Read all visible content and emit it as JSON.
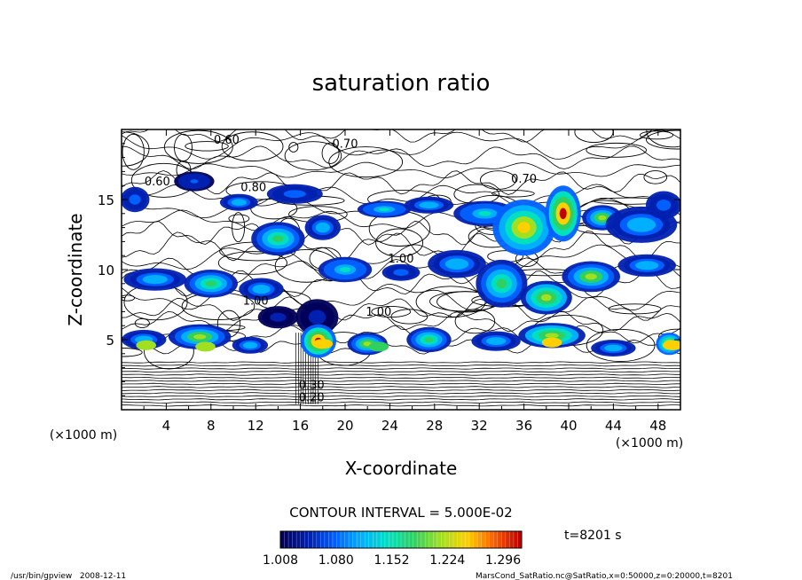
{
  "chart_data": {
    "type": "heatmap",
    "title": "saturation ratio",
    "xlabel": "X-coordinate",
    "ylabel": "Z-coordinate",
    "x_unit": "(×1000 m)",
    "y_unit": "(×1000 m)",
    "xlim": [
      0,
      50
    ],
    "ylim": [
      0,
      20
    ],
    "x_ticks": [
      4,
      8,
      12,
      16,
      20,
      24,
      28,
      32,
      36,
      40,
      44,
      48
    ],
    "y_ticks": [
      5,
      10,
      15
    ],
    "contour_interval_label": "CONTOUR INTERVAL = 5.000E-02",
    "contour_labels": [
      "0.60",
      "0.70",
      "0.80",
      "0.60",
      "0.70",
      "1.00",
      "1.00",
      "1.00",
      "0.20",
      "0.30"
    ],
    "colorbar": {
      "min": 1.008,
      "max": 1.32,
      "ticks": [
        "1.008",
        "1.080",
        "1.152",
        "1.224",
        "1.296"
      ],
      "colors": [
        "#00005a",
        "#0020b0",
        "#0060ff",
        "#00b0ff",
        "#00e0c0",
        "#30d060",
        "#a0e020",
        "#ffd000",
        "#ff6000",
        "#c00000"
      ]
    },
    "time_label": "t=8201 s"
  },
  "footer": {
    "left": "/usr/bin/gpview   2008-12-11",
    "right": "MarsCond_SatRatio.nc@SatRatio,x=0:50000,z=0:20000,t=8201"
  }
}
